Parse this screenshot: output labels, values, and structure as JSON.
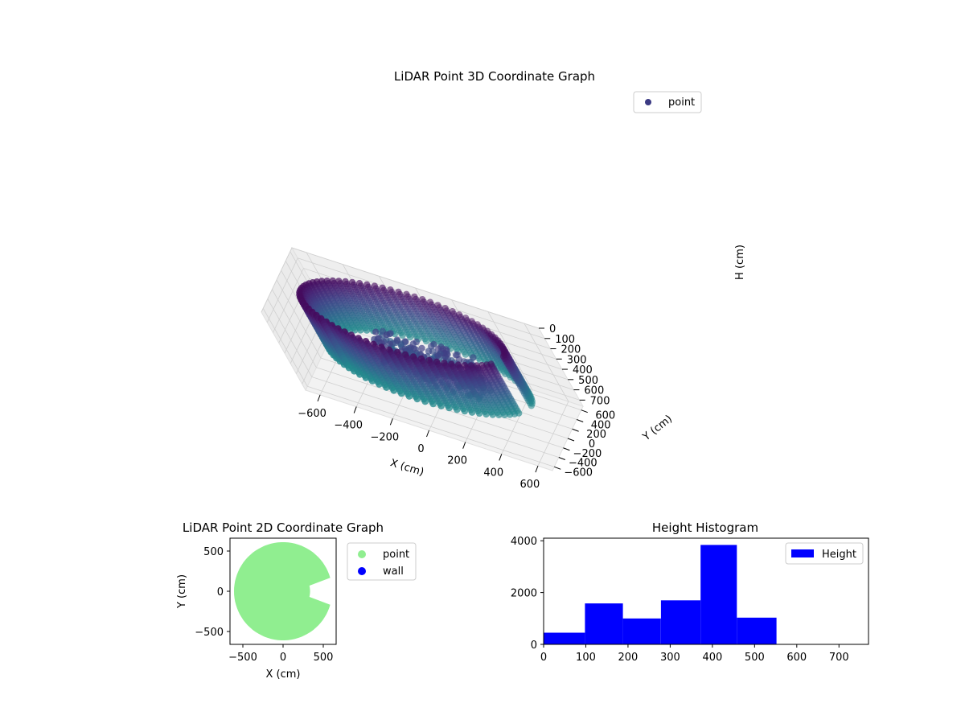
{
  "chart_data": [
    {
      "type": "scatter",
      "projection": "3d",
      "title": "LiDAR Point 3D Coordinate Graph",
      "xlabel": "X (cm)",
      "ylabel": "Y (cm)",
      "zlabel": "H (cm)",
      "xlim": [
        -680,
        680
      ],
      "ylim": [
        -680,
        680
      ],
      "zlim": [
        760,
        0
      ],
      "z_inverted": true,
      "xticks": [
        -600,
        -400,
        -200,
        0,
        200,
        400,
        600
      ],
      "yticks": [
        -600,
        -400,
        -200,
        0,
        200,
        400,
        600
      ],
      "zticks": [
        0,
        100,
        200,
        300,
        400,
        500,
        600,
        700
      ],
      "grid": true,
      "colormap": "viridis",
      "legend": {
        "position": "top-right",
        "entries": [
          "point"
        ]
      },
      "series": [
        {
          "name": "point",
          "color": "#3b3a83",
          "structures": [
            {
              "kind": "ring-wall",
              "radius": 560,
              "height_range": [
                30,
                510
              ],
              "angle_range_deg": [
                0,
                342
              ]
            },
            {
              "kind": "interior-cluster",
              "x_range": [
                -200,
                350
              ],
              "y_range": [
                -250,
                100
              ],
              "height_range": [
                200,
                520
              ]
            }
          ]
        }
      ]
    },
    {
      "type": "scatter",
      "title": "LiDAR Point 2D Coordinate Graph",
      "xlabel": "X (cm)",
      "ylabel": "Y (cm)",
      "xlim": [
        -660,
        660
      ],
      "ylim": [
        -660,
        660
      ],
      "xticks": [
        -500,
        0,
        500
      ],
      "yticks": [
        -500,
        0,
        500
      ],
      "legend": {
        "position": "outside-right",
        "entries": [
          "point",
          "wall"
        ]
      },
      "series": [
        {
          "name": "point",
          "color": "#90ee90",
          "region": "disc",
          "radius": 610
        },
        {
          "name": "wall",
          "color": "#0000ff",
          "points": []
        }
      ]
    },
    {
      "type": "bar",
      "subtype": "histogram",
      "title": "Height Histogram",
      "xlim": [
        0,
        770
      ],
      "ylim": [
        0,
        4100
      ],
      "xticks": [
        0,
        100,
        200,
        300,
        400,
        500,
        600,
        700
      ],
      "yticks": [
        0,
        2000,
        4000
      ],
      "legend": {
        "position": "top-right",
        "entries": [
          "Height"
        ]
      },
      "series": [
        {
          "name": "Height",
          "color": "#0000ff",
          "bins": [
            0,
            98,
            188,
            278,
            372,
            458,
            552
          ],
          "values": [
            450,
            1580,
            1000,
            1700,
            3840,
            1030
          ]
        }
      ]
    }
  ]
}
